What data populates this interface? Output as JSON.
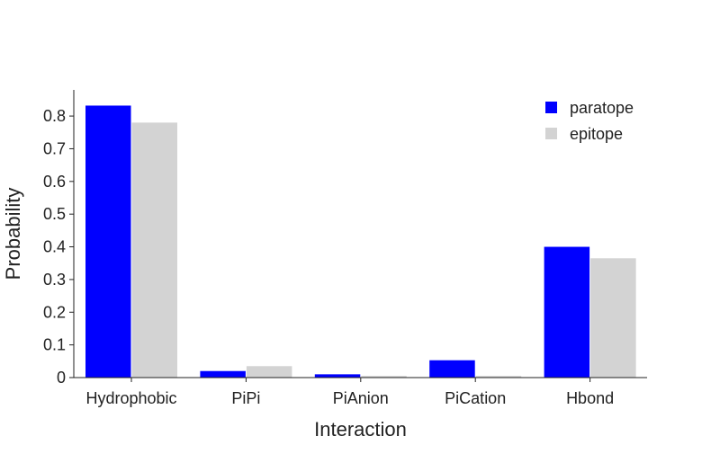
{
  "colors": {
    "paratope": "#0000ff",
    "epitope": "#d3d3d3",
    "axis": "#222222",
    "text": "#222222",
    "background": "#ffffff"
  },
  "chart_data": {
    "type": "bar",
    "title": "",
    "xlabel": "Interaction",
    "ylabel": "Probability",
    "categories": [
      "Hydrophobic",
      "PiPi",
      "PiAnion",
      "PiCation",
      "Hbond"
    ],
    "series": [
      {
        "name": "paratope",
        "color": "#0000ff",
        "values": [
          0.832,
          0.02,
          0.01,
          0.053,
          0.4
        ]
      },
      {
        "name": "epitope",
        "color": "#d3d3d3",
        "values": [
          0.78,
          0.035,
          0.005,
          0.005,
          0.365
        ]
      }
    ],
    "ylim": [
      0,
      0.88
    ],
    "yticks": [
      0,
      0.1,
      0.2,
      0.3,
      0.4,
      0.5,
      0.6,
      0.7,
      0.8
    ],
    "ytick_labels": [
      "0",
      "0.1",
      "0.2",
      "0.3",
      "0.4",
      "0.5",
      "0.6",
      "0.7",
      "0.8"
    ],
    "grid": false,
    "legend_position": "top-right"
  }
}
